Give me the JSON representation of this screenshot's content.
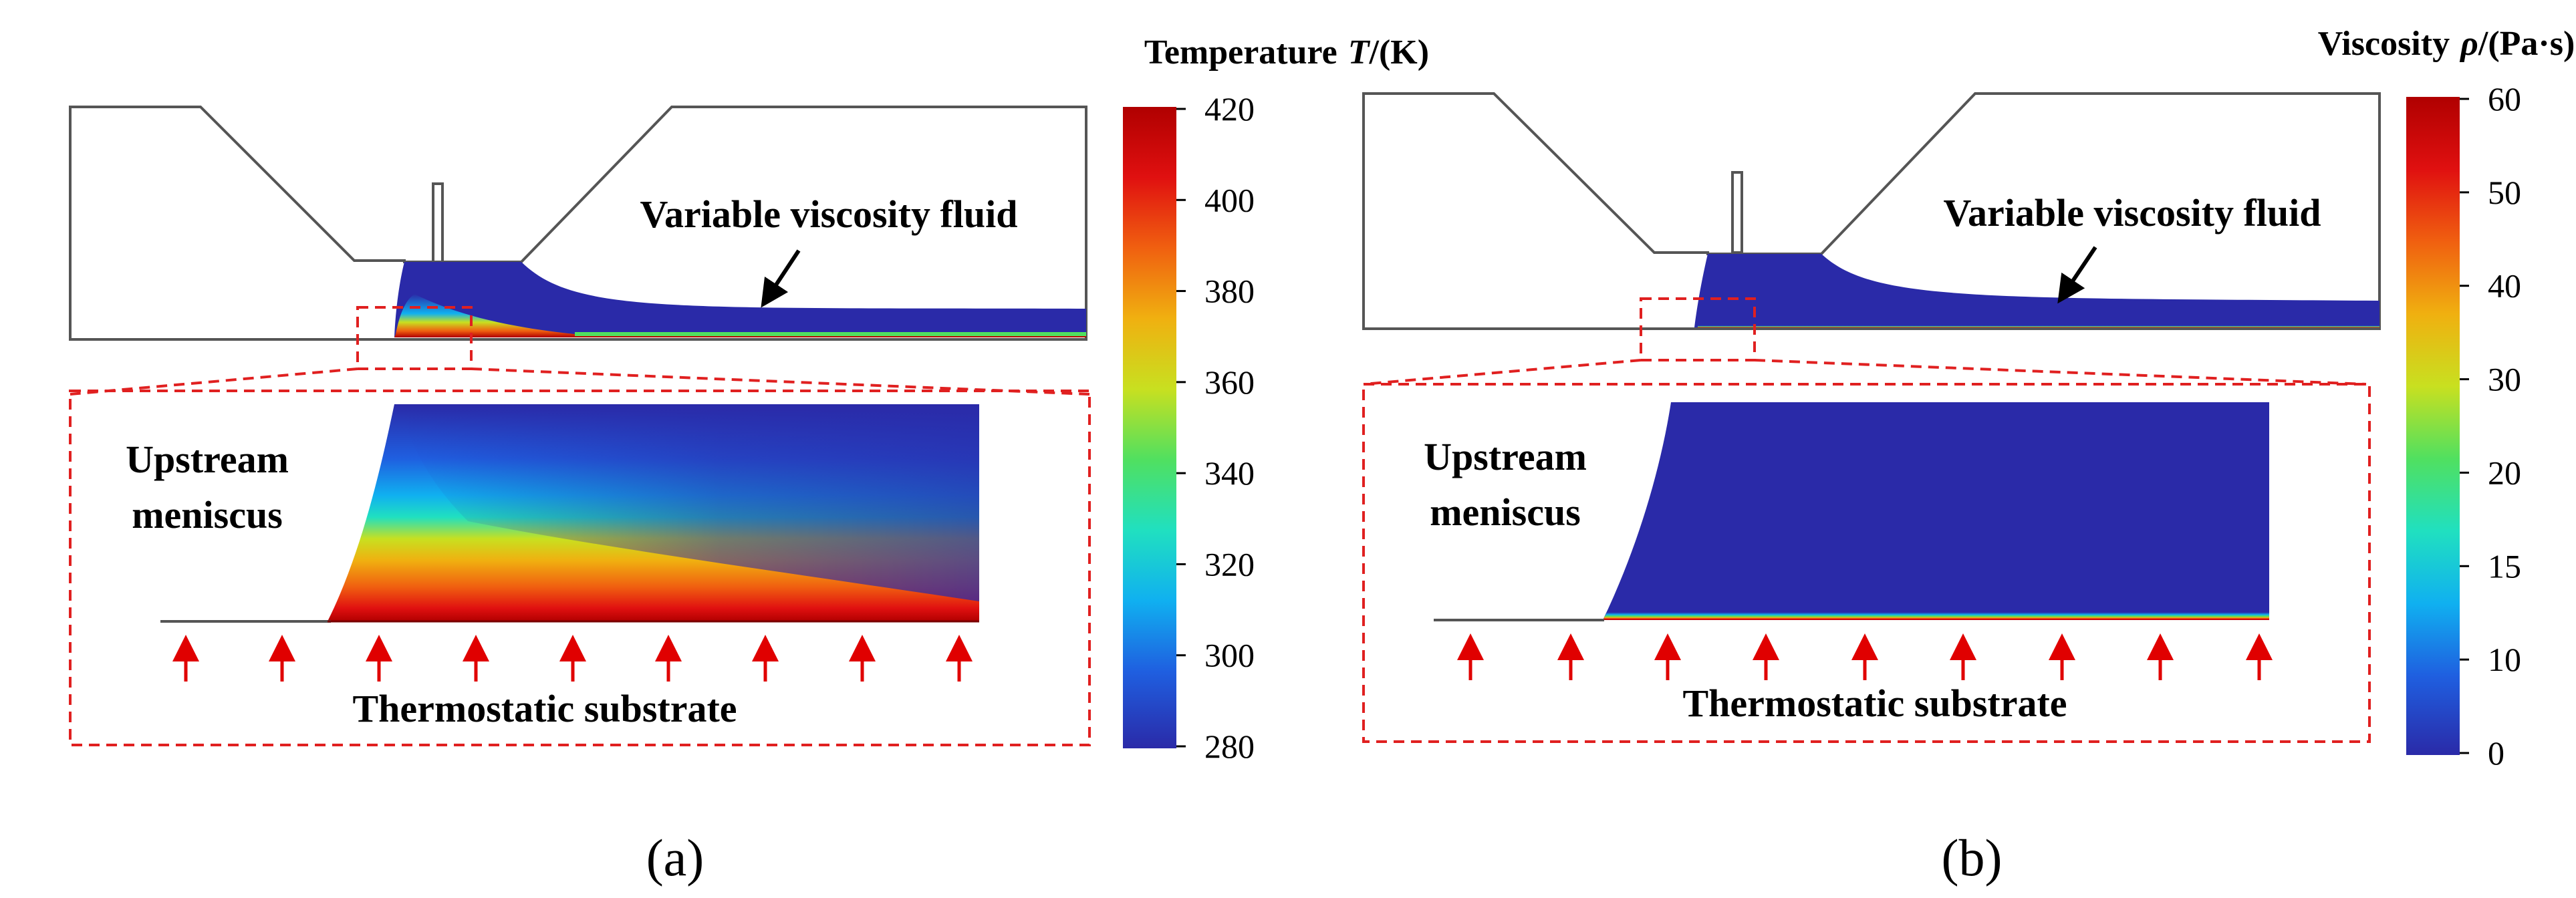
{
  "panel_a": {
    "caption": "(a)",
    "colorbar": {
      "title_prefix": "Temperature",
      "title_symbol": "T",
      "title_unit": "/(K)",
      "ticks": [
        "420",
        "400",
        "380",
        "360",
        "340",
        "320",
        "300",
        "280"
      ],
      "min": 280,
      "max": 420
    },
    "fluid_label": "Variable viscosity fluid",
    "meniscus_label_line1": "Upstream",
    "meniscus_label_line2": "meniscus",
    "substrate_label": "Thermostatic substrate"
  },
  "panel_b": {
    "caption": "(b)",
    "colorbar": {
      "title_prefix": "Viscosity",
      "title_symbol": "ρ",
      "title_unit": "/(Pa·s)",
      "ticks": [
        "60",
        "50",
        "40",
        "30",
        "20",
        "15",
        "10",
        "0"
      ],
      "min": 0,
      "max": 60
    },
    "fluid_label": "Variable viscosity fluid",
    "meniscus_label_line1": "Upstream",
    "meniscus_label_line2": "meniscus",
    "substrate_label": "Thermostatic substrate"
  },
  "colors": {
    "jet": [
      "#2a2aa8",
      "#1f5fe0",
      "#10b0f0",
      "#20e0c0",
      "#50e060",
      "#c8e020",
      "#f0b010",
      "#f06010",
      "#e01010",
      "#b00000"
    ],
    "outline": "#555555",
    "arrow_red": "#e00000",
    "dash_red": "#e02020"
  }
}
